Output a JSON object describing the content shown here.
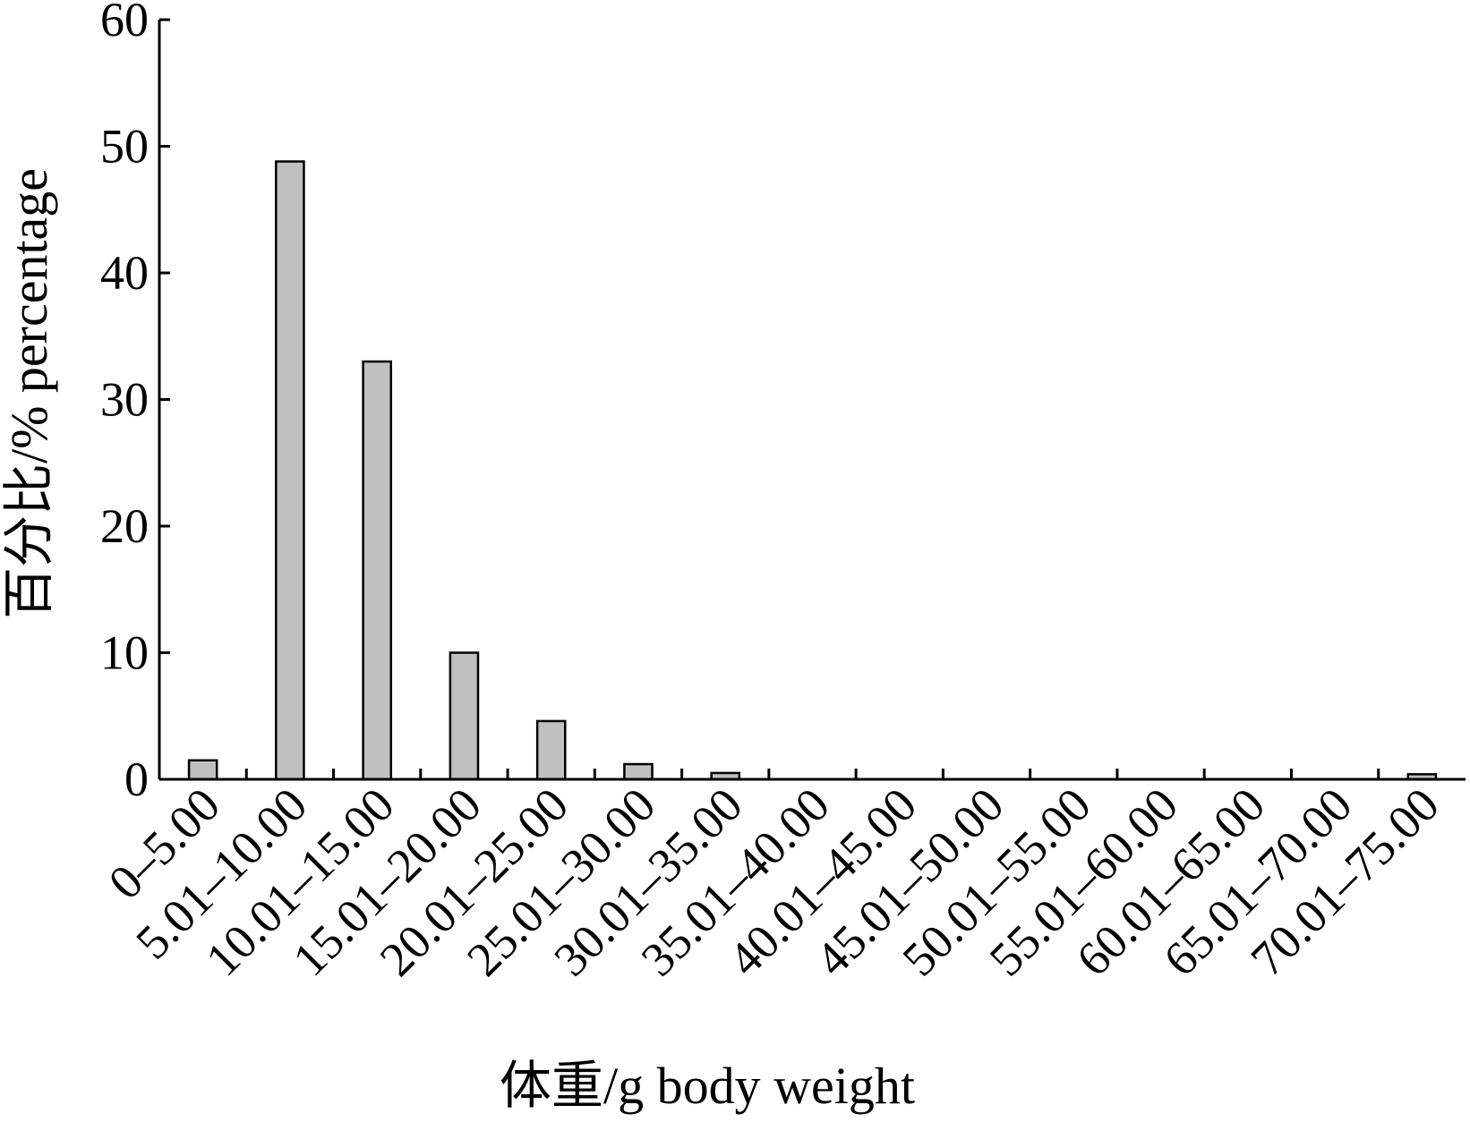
{
  "chart_data": {
    "type": "bar",
    "categories": [
      "0–5.00",
      "5.01–10.00",
      "10.01–15.00",
      "15.01–20.00",
      "20.01–25.00",
      "25.01–30.00",
      "30.01–35.00",
      "35.01–40.00",
      "40.01–45.00",
      "45.01–50.00",
      "50.01–55.00",
      "55.01–60.00",
      "60.01–65.00",
      "65.01–70.00",
      "70.01–75.00"
    ],
    "values": [
      1.5,
      48.8,
      33.0,
      10.0,
      4.6,
      1.2,
      0.5,
      0,
      0,
      0,
      0,
      0,
      0,
      0,
      0.4
    ],
    "xlabel": "体重/g body weight",
    "ylabel": "百分比/% percentage",
    "ylim": [
      0,
      60
    ],
    "yticks": [
      "0",
      "10",
      "20",
      "30",
      "40",
      "50",
      "60"
    ],
    "grid": false,
    "colors": {
      "bar_fill": "#c0c0c0",
      "bar_stroke": "#000000"
    }
  }
}
